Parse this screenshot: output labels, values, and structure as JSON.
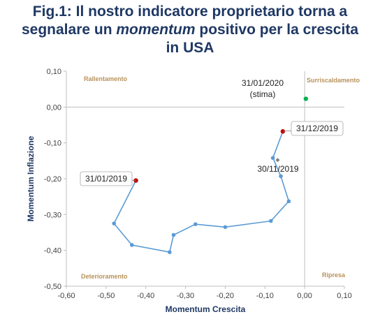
{
  "title": {
    "line1": "Fig.1: Il nostro indicatore proprietario torna a",
    "line2_pre": "segnalare un ",
    "line2_em": "momentum",
    "line2_post": " positivo per la crescita",
    "line3": "in USA"
  },
  "chart_data": {
    "type": "line",
    "xlabel": "Momentum Crescita",
    "ylabel": "Momentum Inflazione",
    "xlim": [
      -0.6,
      0.1
    ],
    "ylim": [
      -0.5,
      0.1
    ],
    "x_ticks": [
      "-0,60",
      "-0,50",
      "-0,40",
      "-0,30",
      "-0,20",
      "-0,10",
      "0,00",
      "0,10"
    ],
    "y_ticks": [
      "0,10",
      "0,00",
      "-0,10",
      "-0,20",
      "-0,30",
      "-0,40",
      "-0,50"
    ],
    "quadrants": {
      "top_left": "Rallentamento",
      "top_right": "Surriscaldamento",
      "bottom_left": "Deterioramento",
      "bottom_right": "Ripresa"
    },
    "series": [
      {
        "points": [
          {
            "x": -0.425,
            "y": -0.205
          },
          {
            "x": -0.48,
            "y": -0.325
          },
          {
            "x": -0.435,
            "y": -0.385
          },
          {
            "x": -0.34,
            "y": -0.405
          },
          {
            "x": -0.33,
            "y": -0.357
          },
          {
            "x": -0.275,
            "y": -0.327
          },
          {
            "x": -0.2,
            "y": -0.335
          },
          {
            "x": -0.085,
            "y": -0.318
          },
          {
            "x": -0.04,
            "y": -0.263
          },
          {
            "x": -0.06,
            "y": -0.193
          },
          {
            "x": -0.08,
            "y": -0.142
          },
          {
            "x": -0.055,
            "y": -0.068
          }
        ],
        "color": "#5b9bd5"
      }
    ],
    "highlight_points": [
      {
        "x": -0.425,
        "y": -0.205,
        "color": "#c00000",
        "label": "31/01/2019"
      },
      {
        "x": -0.055,
        "y": -0.068,
        "color": "#c00000",
        "label": "31/12/2019"
      },
      {
        "x": -0.068,
        "y": -0.148,
        "color": "#7f7f7f",
        "label": "30/11/2019"
      },
      {
        "x": 0.003,
        "y": 0.023,
        "color": "#00b050",
        "label": "31/01/2020",
        "sublabel": "(stima)"
      }
    ]
  }
}
